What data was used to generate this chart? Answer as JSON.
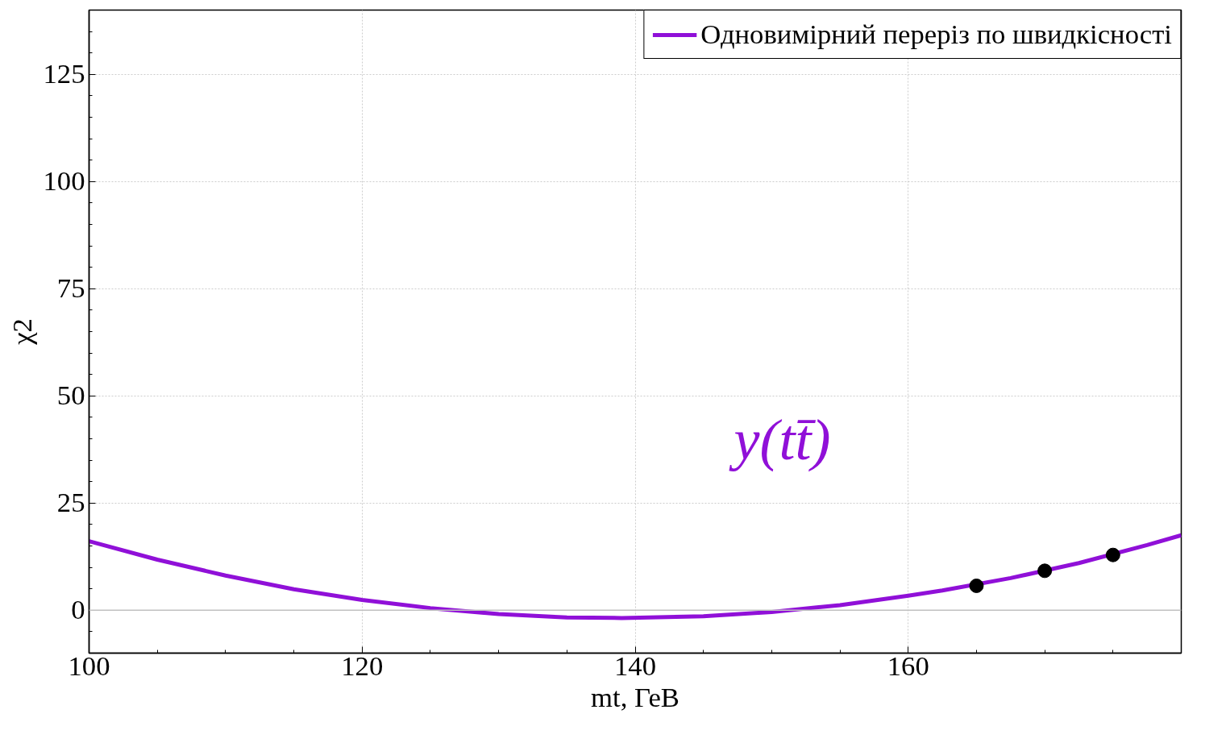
{
  "chart_data": {
    "type": "line",
    "xlabel": "mt, ГеВ",
    "ylabel": "χ2",
    "xlim": [
      100,
      180
    ],
    "xticks": [
      100,
      120,
      140,
      160
    ],
    "ylim": [
      -10,
      140
    ],
    "yticks": [
      0,
      25,
      50,
      75,
      100,
      125
    ],
    "grid": true,
    "legend": "top right",
    "line_style": "solid",
    "annotations": [
      "y(tt̄)"
    ],
    "ref_lines": [
      {
        "axis": "y",
        "value": 0,
        "color": "#c0c0c0"
      }
    ],
    "series": [
      {
        "name": "Одновимірний переріз по швидкісності",
        "color": "#9010d8",
        "marker": "none",
        "x": [
          100,
          105,
          110,
          115,
          120,
          125,
          130,
          135,
          139,
          145,
          150,
          155,
          160,
          162.5,
          167.5,
          172.5,
          177.5,
          180
        ],
        "values": [
          16.1,
          11.8,
          8.1,
          4.9,
          2.4,
          0.5,
          -0.9,
          -1.7,
          -1.8,
          -1.4,
          -0.4,
          1.2,
          3.4,
          4.6,
          7.5,
          11.0,
          15.2,
          17.5
        ]
      },
      {
        "type": "scatter",
        "color": "#000000",
        "marker": "circle",
        "x": [
          165,
          170,
          175
        ],
        "values": [
          5.7,
          9.2,
          12.9
        ]
      }
    ]
  }
}
